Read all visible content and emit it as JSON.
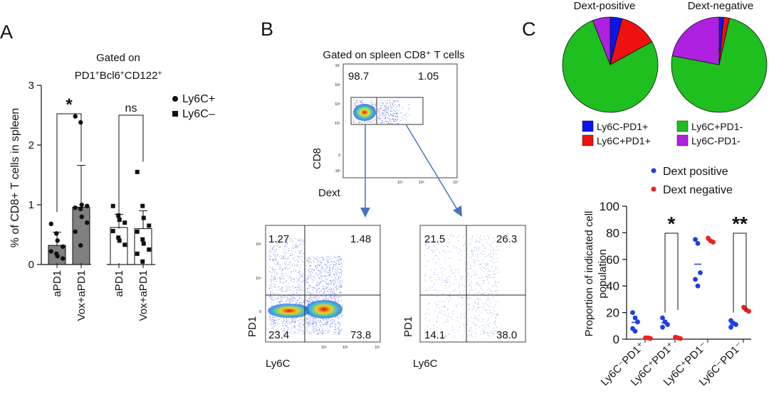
{
  "panels": {
    "A": {
      "letter": "A",
      "title_line1": "Gated on",
      "title_line2_parts": [
        "PD1",
        "+",
        "Bcl6",
        "+",
        "CD122",
        "+"
      ],
      "legend": [
        {
          "marker": "circle",
          "label": "Ly6C+"
        },
        {
          "marker": "square",
          "label": "Ly6C–"
        }
      ],
      "sig_labels": [
        "*",
        "ns"
      ]
    },
    "B": {
      "letter": "B",
      "title": "Gated on spleen CD8⁺ T cells",
      "top_plot": {
        "xlabel": "Dext",
        "ylabel": "CD8",
        "quadrants": [
          "98.7",
          "1.05"
        ]
      },
      "left_plot": {
        "xlabel": "Ly6C",
        "ylabel": "PD1",
        "quadrants": [
          "1.27",
          "1.48",
          "23.4",
          "73.8"
        ]
      },
      "right_plot": {
        "xlabel": "Ly6C",
        "ylabel": "PD1",
        "quadrants": [
          "21.5",
          "26.3",
          "14.1",
          "38.0"
        ]
      },
      "tick_labels": [
        "10⁷",
        "10⁶",
        "10⁵",
        "10⁴",
        "0",
        "-10³"
      ]
    },
    "C": {
      "letter": "C",
      "pie_legend": [
        {
          "label": "Ly6C-PD1+",
          "color": "#0a14f0"
        },
        {
          "label": "Ly6C+PD1-",
          "color": "#1fbf1f"
        },
        {
          "label": "Ly6C+PD1+",
          "color": "#f01010"
        },
        {
          "label": "Ly6C-PD1-",
          "color": "#b020e0"
        }
      ],
      "dot_legend": [
        {
          "label": "Dext positive",
          "color": "#1f3fe0"
        },
        {
          "label": "Dext negative",
          "color": "#f02020"
        }
      ],
      "sig_labels": [
        "*",
        "**"
      ]
    }
  },
  "chart_data": [
    {
      "type": "bar",
      "panel": "A",
      "title": "Gated on PD1⁺Bcl6⁺CD122⁺",
      "ylabel": "% of CD8+ T cells in spleen",
      "ylim": [
        0,
        3
      ],
      "yticks": [
        0,
        1,
        2,
        3
      ],
      "categories": [
        "aPD1",
        "Vox+aPD1",
        "aPD1",
        "Vox+aPD1"
      ],
      "groups": [
        "Ly6C+",
        "Ly6C+",
        "Ly6C–",
        "Ly6C–"
      ],
      "bar_colors": [
        "#808080",
        "#808080",
        "#ffffff",
        "#ffffff"
      ],
      "means": [
        0.32,
        0.96,
        0.62,
        0.6
      ],
      "sd": [
        0.22,
        0.7,
        0.22,
        0.3
      ],
      "points": [
        [
          0.68,
          0.52,
          0.4,
          0.3,
          0.22,
          0.18,
          0.14,
          0.1
        ],
        [
          2.48,
          2.38,
          1.0,
          0.98,
          0.95,
          0.93,
          0.8,
          0.7,
          0.55,
          0.32
        ],
        [
          0.98,
          0.82,
          0.75,
          0.7,
          0.56,
          0.45,
          0.4,
          0.33
        ],
        [
          1.55,
          0.98,
          0.78,
          0.65,
          0.55,
          0.42,
          0.35,
          0.25,
          0.18,
          0.05
        ]
      ],
      "significance": [
        "*",
        "ns"
      ],
      "legend": [
        "Ly6C+",
        "Ly6C–"
      ]
    },
    {
      "type": "pie",
      "panel": "C",
      "title": "Dext-positive",
      "labels": [
        "Ly6C-PD1+",
        "Ly6C+PD1+",
        "Ly6C+PD1-",
        "Ly6C-PD1-"
      ],
      "values": [
        4,
        13,
        77,
        6
      ],
      "colors": [
        "#0a14f0",
        "#f01010",
        "#1fbf1f",
        "#b020e0"
      ]
    },
    {
      "type": "pie",
      "panel": "C",
      "title": "Dext-negative",
      "labels": [
        "Ly6C-PD1+",
        "Ly6C+PD1+",
        "Ly6C+PD1-",
        "Ly6C-PD1-"
      ],
      "values": [
        1.5,
        2,
        74.5,
        22
      ],
      "colors": [
        "#0a14f0",
        "#f01010",
        "#1fbf1f",
        "#b020e0"
      ]
    },
    {
      "type": "scatter",
      "panel": "C",
      "ylabel": "Proportion of indicated cell population",
      "ylim": [
        0,
        100
      ],
      "yticks": [
        0,
        20,
        40,
        60,
        80,
        100
      ],
      "categories": [
        "Ly6C⁻PD1⁺",
        "Ly6C⁺PD1⁺",
        "Ly6C⁺PD1⁻",
        "Ly6C⁻PD1⁻"
      ],
      "series": [
        {
          "name": "Dext positive",
          "color": "#1f3fe0",
          "values": [
            [
              20,
              16,
              13,
              8,
              6
            ],
            [
              16,
              13,
              11,
              9
            ],
            [
              75,
              72,
              50,
              45,
              40
            ],
            [
              14,
              12,
              11,
              9
            ]
          ]
        },
        {
          "name": "Dext negative",
          "color": "#f02020",
          "values": [
            [
              1,
              1,
              0.5
            ],
            [
              1.5,
              1,
              0.5
            ],
            [
              76,
              74,
              73
            ],
            [
              24,
              22,
              21
            ]
          ]
        }
      ],
      "significance": [
        "*",
        "**"
      ]
    }
  ]
}
